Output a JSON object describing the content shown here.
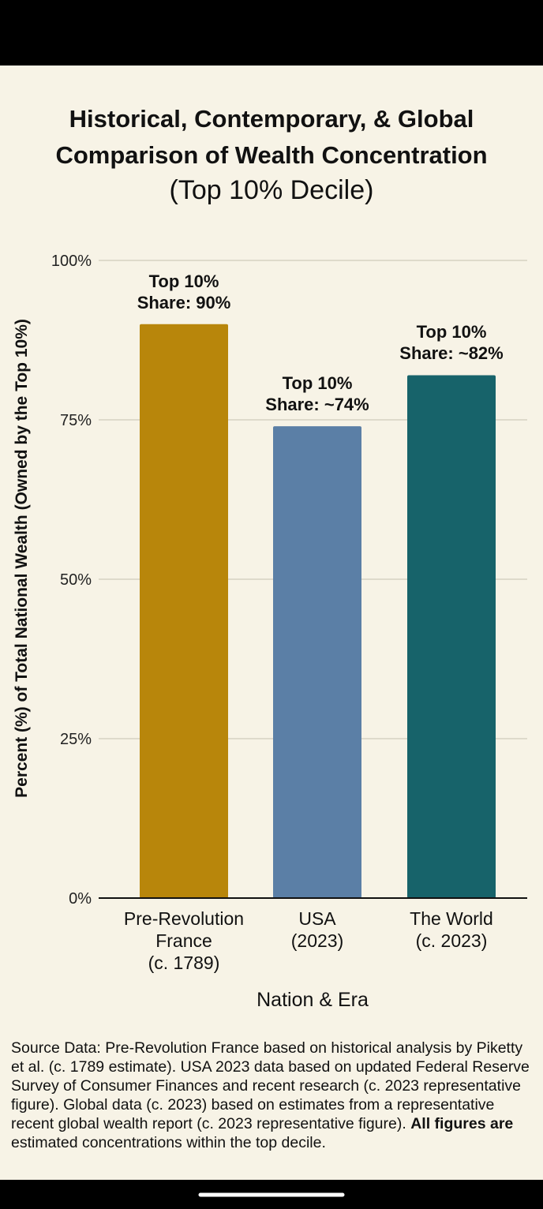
{
  "chart_data": {
    "type": "bar",
    "title": "Historical, Contemporary, & Global\nComparison of Wealth Concentration",
    "subtitle": "(Top 10% Decile)",
    "ylabel": "Percent (%) of Total National Wealth (Owned by the Top 10%)",
    "xlabel": "Nation & Era",
    "categories": [
      "Pre-Revolution\nFrance\n(c. 1789)",
      "USA\n(2023)",
      "The World\n(c. 2023)"
    ],
    "values": [
      90,
      74,
      82
    ],
    "value_labels": [
      "Top 10%\nShare: 90%",
      "Top 10%\nShare: ~74%",
      "Top 10%\nShare: ~82%"
    ],
    "colors": [
      "#b8860b",
      "#5b7fa6",
      "#17636a"
    ],
    "ylim": [
      0,
      100
    ],
    "yticks": [
      {
        "value": 0,
        "label": "0%"
      },
      {
        "value": 25,
        "label": "25%"
      },
      {
        "value": 50,
        "label": "50%"
      },
      {
        "value": 75,
        "label": "75%"
      },
      {
        "value": 100,
        "label": "100%"
      }
    ],
    "grid": true,
    "footnote": {
      "before": "Source Data: Pre-Revolution France based on historical analysis by Piketty et al. (c. 1789 estimate). USA 2023 data based on updated Federal Reserve Survey of Consumer Finances and recent research (c. 2023 representative figure). Global data (c. 2023) based on estimates from a representative recent global wealth report (c. 2023 representative figure). ",
      "emphasis": "All figures are",
      "after": " estimated concentrations within the top decile."
    }
  }
}
